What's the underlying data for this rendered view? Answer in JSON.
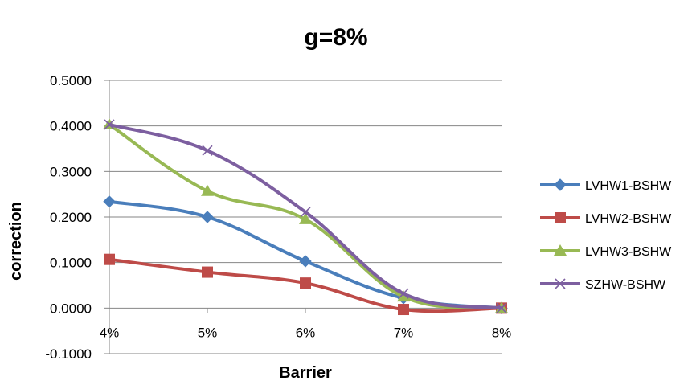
{
  "chart_data": {
    "type": "line",
    "title": "g=8%",
    "xlabel": "Barrier",
    "ylabel": "correction",
    "categories": [
      "4%",
      "5%",
      "6%",
      "7%",
      "8%"
    ],
    "ylim": [
      -0.1,
      0.5
    ],
    "yticks": [
      -0.1,
      0.0,
      0.1,
      0.2,
      0.3,
      0.4,
      0.5
    ],
    "ytick_labels": [
      "-0.1000",
      "0.0000",
      "0.1000",
      "0.2000",
      "0.3000",
      "0.4000",
      "0.5000"
    ],
    "grid": true,
    "legend_position": "right",
    "smooth": true,
    "series": [
      {
        "name": "LVHW1-BSHW",
        "color": "#4a7ebb",
        "marker": "diamond",
        "values": [
          0.234,
          0.2,
          0.103,
          0.022,
          0.0
        ]
      },
      {
        "name": "LVHW2-BSHW",
        "color": "#be4b48",
        "marker": "square",
        "values": [
          0.107,
          0.079,
          0.055,
          -0.003,
          0.0
        ]
      },
      {
        "name": "LVHW3-BSHW",
        "color": "#98b954",
        "marker": "triangle",
        "values": [
          0.403,
          0.257,
          0.195,
          0.025,
          0.0
        ]
      },
      {
        "name": "SZHW-BSHW",
        "color": "#7d5fa0",
        "marker": "x",
        "values": [
          0.403,
          0.346,
          0.211,
          0.032,
          0.0
        ]
      }
    ]
  }
}
